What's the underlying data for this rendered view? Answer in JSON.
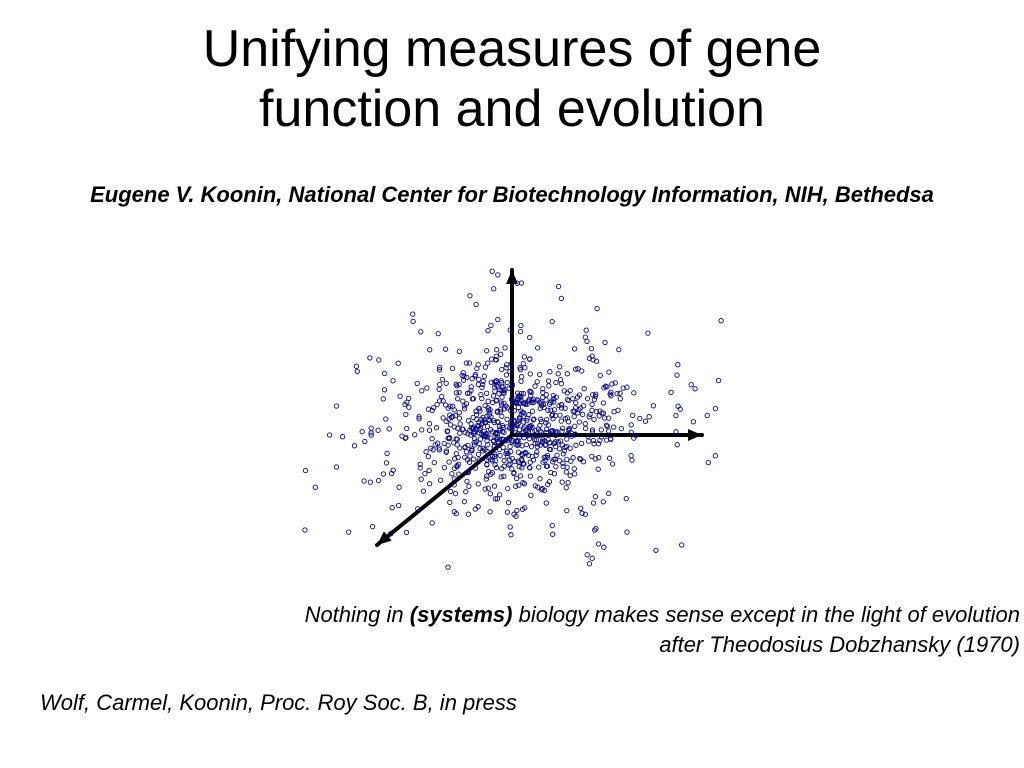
{
  "title_line1": "Unifying measures of gene",
  "title_line2": "function and evolution",
  "author": "Eugene V. Koonin, National Center for Biotechnology Information, NIH, Bethedsa",
  "quote_pre": "Nothing in ",
  "quote_bold": "(systems)",
  "quote_post": " biology makes sense except in the light of evolution",
  "quote_line2": "after Theodosius Dobzhansky (1970)",
  "citation": "Wolf, Carmel, Koonin, Proc. Roy Soc. B, in press",
  "scatter": {
    "type": "scatter3d",
    "n_points": 900,
    "point_color": "#1a1aa8",
    "point_stroke": "#0a0a80",
    "point_size": 2.2,
    "axis_color": "#000000",
    "axis_stroke_width": 4,
    "background_color": "#ffffff",
    "origin_svg": [
      230,
      195
    ],
    "axes": [
      {
        "name": "y",
        "tip": [
          230,
          30
        ],
        "arrow": "0,-1"
      },
      {
        "name": "x",
        "tip": [
          420,
          195
        ],
        "arrow": "1,0"
      },
      {
        "name": "z",
        "tip": [
          95,
          305
        ],
        "arrow": "-0.77,0.64"
      }
    ],
    "cloud_center": [
      230,
      195
    ],
    "cloud_sigma_main": 48,
    "cloud_sigma_wide": 85,
    "cloud_skew_x": 1.3
  },
  "typography": {
    "title_fontsize": 52,
    "author_fontsize": 22,
    "quote_fontsize": 22,
    "citation_fontsize": 22
  }
}
